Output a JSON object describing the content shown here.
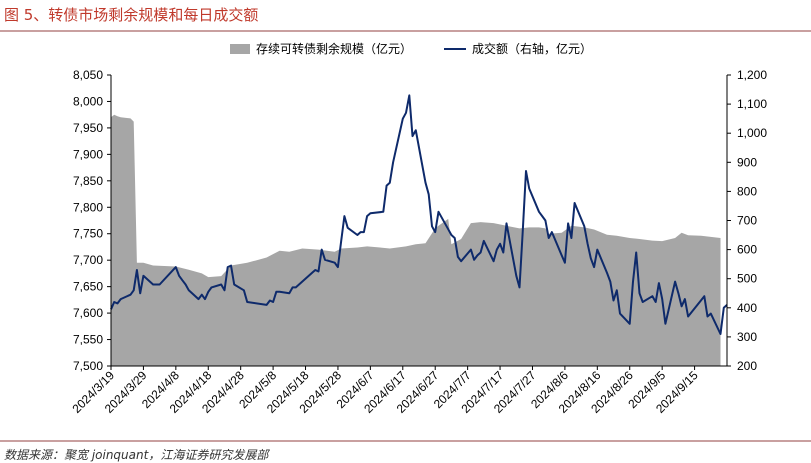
{
  "header": {
    "title": "图 5、转债市场剩余规模和每日成交额"
  },
  "footer": {
    "source": "数据来源：聚宽 joinquant，江海证券研究发展部"
  },
  "colors": {
    "area": "#a6a6a6",
    "line": "#0e2a6b",
    "title": "#c0392b",
    "rule": "#c9a0a0"
  },
  "chart_data": {
    "type": "area+line",
    "title": "",
    "legend_position": "top",
    "series": [
      {
        "name": "存续可转债剩余规模（亿元）",
        "type": "area",
        "axis": "left",
        "points": [
          [
            "2024-03-19",
            7970
          ],
          [
            "2024-03-20",
            7975
          ],
          [
            "2024-03-21",
            7972
          ],
          [
            "2024-03-22",
            7970
          ],
          [
            "2024-03-25",
            7968
          ],
          [
            "2024-03-26",
            7962
          ],
          [
            "2024-03-27",
            7695
          ],
          [
            "2024-03-29",
            7695
          ],
          [
            "2024-04-01",
            7690
          ],
          [
            "2024-04-08",
            7688
          ],
          [
            "2024-04-12",
            7682
          ],
          [
            "2024-04-16",
            7675
          ],
          [
            "2024-04-18",
            7668
          ],
          [
            "2024-04-22",
            7670
          ],
          [
            "2024-04-25",
            7690
          ],
          [
            "2024-04-30",
            7695
          ],
          [
            "2024-05-06",
            7705
          ],
          [
            "2024-05-10",
            7718
          ],
          [
            "2024-05-13",
            7716
          ],
          [
            "2024-05-17",
            7722
          ],
          [
            "2024-05-22",
            7720
          ],
          [
            "2024-05-27",
            7716
          ],
          [
            "2024-05-29",
            7722
          ],
          [
            "2024-06-03",
            7724
          ],
          [
            "2024-06-06",
            7726
          ],
          [
            "2024-06-10",
            7724
          ],
          [
            "2024-06-13",
            7722
          ],
          [
            "2024-06-18",
            7726
          ],
          [
            "2024-06-21",
            7730
          ],
          [
            "2024-06-24",
            7732
          ],
          [
            "2024-06-27",
            7760
          ],
          [
            "2024-06-28",
            7765
          ],
          [
            "2024-07-01",
            7778
          ],
          [
            "2024-07-02",
            7730
          ],
          [
            "2024-07-05",
            7740
          ],
          [
            "2024-07-08",
            7770
          ],
          [
            "2024-07-11",
            7772
          ],
          [
            "2024-07-15",
            7770
          ],
          [
            "2024-07-19",
            7765
          ],
          [
            "2024-07-23",
            7760
          ],
          [
            "2024-07-26",
            7762
          ],
          [
            "2024-07-29",
            7762
          ],
          [
            "2024-07-31",
            7760
          ],
          [
            "2024-08-01",
            7750
          ],
          [
            "2024-08-05",
            7752
          ],
          [
            "2024-08-08",
            7765
          ],
          [
            "2024-08-12",
            7762
          ],
          [
            "2024-08-15",
            7758
          ],
          [
            "2024-08-19",
            7748
          ],
          [
            "2024-08-22",
            7746
          ],
          [
            "2024-08-26",
            7742
          ],
          [
            "2024-08-29",
            7740
          ],
          [
            "2024-09-02",
            7737
          ],
          [
            "2024-09-05",
            7736
          ],
          [
            "2024-09-09",
            7742
          ],
          [
            "2024-09-11",
            7752
          ],
          [
            "2024-09-13",
            7747
          ],
          [
            "2024-09-17",
            7746
          ],
          [
            "2024-09-20",
            7744
          ],
          [
            "2024-09-23",
            7742
          ]
        ]
      },
      {
        "name": "成交额（右轴，亿元）",
        "type": "line",
        "axis": "right",
        "points": [
          [
            "2024-03-19",
            395
          ],
          [
            "2024-03-20",
            420
          ],
          [
            "2024-03-21",
            415
          ],
          [
            "2024-03-22",
            430
          ],
          [
            "2024-03-25",
            445
          ],
          [
            "2024-03-26",
            460
          ],
          [
            "2024-03-27",
            530
          ],
          [
            "2024-03-28",
            450
          ],
          [
            "2024-03-29",
            510
          ],
          [
            "2024-04-01",
            480
          ],
          [
            "2024-04-02",
            480
          ],
          [
            "2024-04-03",
            480
          ],
          [
            "2024-04-08",
            540
          ],
          [
            "2024-04-09",
            510
          ],
          [
            "2024-04-10",
            495
          ],
          [
            "2024-04-11",
            480
          ],
          [
            "2024-04-12",
            460
          ],
          [
            "2024-04-15",
            430
          ],
          [
            "2024-04-16",
            445
          ],
          [
            "2024-04-17",
            430
          ],
          [
            "2024-04-18",
            455
          ],
          [
            "2024-04-19",
            470
          ],
          [
            "2024-04-22",
            480
          ],
          [
            "2024-04-23",
            460
          ],
          [
            "2024-04-24",
            540
          ],
          [
            "2024-04-25",
            545
          ],
          [
            "2024-04-26",
            480
          ],
          [
            "2024-04-29",
            460
          ],
          [
            "2024-04-30",
            420
          ],
          [
            "2024-05-06",
            410
          ],
          [
            "2024-05-07",
            425
          ],
          [
            "2024-05-08",
            420
          ],
          [
            "2024-05-09",
            455
          ],
          [
            "2024-05-10",
            455
          ],
          [
            "2024-05-13",
            450
          ],
          [
            "2024-05-14",
            470
          ],
          [
            "2024-05-15",
            470
          ],
          [
            "2024-05-20",
            520
          ],
          [
            "2024-05-21",
            530
          ],
          [
            "2024-05-22",
            525
          ],
          [
            "2024-05-23",
            600
          ],
          [
            "2024-05-24",
            565
          ],
          [
            "2024-05-27",
            555
          ],
          [
            "2024-05-28",
            540
          ],
          [
            "2024-05-29",
            630
          ],
          [
            "2024-05-30",
            715
          ],
          [
            "2024-05-31",
            675
          ],
          [
            "2024-06-03",
            650
          ],
          [
            "2024-06-04",
            660
          ],
          [
            "2024-06-05",
            660
          ],
          [
            "2024-06-06",
            715
          ],
          [
            "2024-06-07",
            725
          ],
          [
            "2024-06-11",
            730
          ],
          [
            "2024-06-12",
            820
          ],
          [
            "2024-06-13",
            830
          ],
          [
            "2024-06-14",
            900
          ],
          [
            "2024-06-17",
            1050
          ],
          [
            "2024-06-18",
            1070
          ],
          [
            "2024-06-19",
            1130
          ],
          [
            "2024-06-20",
            990
          ],
          [
            "2024-06-21",
            1010
          ],
          [
            "2024-06-24",
            830
          ],
          [
            "2024-06-25",
            790
          ],
          [
            "2024-06-26",
            680
          ],
          [
            "2024-06-27",
            660
          ],
          [
            "2024-06-28",
            730
          ],
          [
            "2024-07-01",
            670
          ],
          [
            "2024-07-02",
            650
          ],
          [
            "2024-07-03",
            640
          ],
          [
            "2024-07-04",
            575
          ],
          [
            "2024-07-05",
            560
          ],
          [
            "2024-07-08",
            600
          ],
          [
            "2024-07-09",
            565
          ],
          [
            "2024-07-10",
            580
          ],
          [
            "2024-07-11",
            590
          ],
          [
            "2024-07-12",
            630
          ],
          [
            "2024-07-15",
            560
          ],
          [
            "2024-07-16",
            600
          ],
          [
            "2024-07-17",
            620
          ],
          [
            "2024-07-18",
            590
          ],
          [
            "2024-07-19",
            690
          ],
          [
            "2024-07-22",
            510
          ],
          [
            "2024-07-23",
            470
          ],
          [
            "2024-07-24",
            660
          ],
          [
            "2024-07-25",
            870
          ],
          [
            "2024-07-26",
            810
          ],
          [
            "2024-07-29",
            730
          ],
          [
            "2024-07-30",
            715
          ],
          [
            "2024-07-31",
            700
          ],
          [
            "2024-08-01",
            640
          ],
          [
            "2024-08-02",
            660
          ],
          [
            "2024-08-05",
            580
          ],
          [
            "2024-08-06",
            555
          ],
          [
            "2024-08-07",
            690
          ],
          [
            "2024-08-08",
            640
          ],
          [
            "2024-08-09",
            760
          ],
          [
            "2024-08-12",
            680
          ],
          [
            "2024-08-13",
            620
          ],
          [
            "2024-08-14",
            570
          ],
          [
            "2024-08-15",
            540
          ],
          [
            "2024-08-16",
            600
          ],
          [
            "2024-08-19",
            520
          ],
          [
            "2024-08-20",
            490
          ],
          [
            "2024-08-21",
            425
          ],
          [
            "2024-08-22",
            460
          ],
          [
            "2024-08-23",
            380
          ],
          [
            "2024-08-26",
            345
          ],
          [
            "2024-08-27",
            490
          ],
          [
            "2024-08-28",
            590
          ],
          [
            "2024-08-29",
            450
          ],
          [
            "2024-08-30",
            420
          ],
          [
            "2024-09-02",
            440
          ],
          [
            "2024-09-03",
            420
          ],
          [
            "2024-09-04",
            485
          ],
          [
            "2024-09-05",
            430
          ],
          [
            "2024-09-06",
            345
          ],
          [
            "2024-09-09",
            490
          ],
          [
            "2024-09-10",
            450
          ],
          [
            "2024-09-11",
            405
          ],
          [
            "2024-09-12",
            430
          ],
          [
            "2024-09-13",
            370
          ],
          [
            "2024-09-18",
            440
          ],
          [
            "2024-09-19",
            370
          ],
          [
            "2024-09-20",
            380
          ],
          [
            "2024-09-23",
            310
          ],
          [
            "2024-09-24",
            400
          ],
          [
            "2024-09-25",
            410
          ]
        ]
      }
    ],
    "x_axis": {
      "range": [
        "2024-03-19",
        "2024-09-25"
      ],
      "tick_labels": [
        "2024/3/19",
        "2024/3/29",
        "2024/4/8",
        "2024/4/18",
        "2024/4/28",
        "2024/5/8",
        "2024/5/18",
        "2024/5/28",
        "2024/6/7",
        "2024/6/17",
        "2024/6/27",
        "2024/7/7",
        "2024/7/17",
        "2024/7/27",
        "2024/8/6",
        "2024/8/16",
        "2024/8/26",
        "2024/9/5",
        "2024/9/15"
      ],
      "tick_dates": [
        "2024-03-19",
        "2024-03-29",
        "2024-04-08",
        "2024-04-18",
        "2024-04-28",
        "2024-05-08",
        "2024-05-18",
        "2024-05-28",
        "2024-06-07",
        "2024-06-17",
        "2024-06-27",
        "2024-07-07",
        "2024-07-17",
        "2024-07-27",
        "2024-08-06",
        "2024-08-16",
        "2024-08-26",
        "2024-09-05",
        "2024-09-15"
      ]
    },
    "y_left": {
      "min": 7500,
      "max": 8050,
      "tick_labels": [
        "8,050",
        "8,000",
        "7,950",
        "7,900",
        "7,850",
        "7,800",
        "7,750",
        "7,700",
        "7,650",
        "7,600",
        "7,550",
        "7,500"
      ],
      "tick_values": [
        8050,
        8000,
        7950,
        7900,
        7850,
        7800,
        7750,
        7700,
        7650,
        7600,
        7550,
        7500
      ]
    },
    "y_right": {
      "min": 200,
      "max": 1200,
      "tick_labels": [
        "1,200",
        "1,100",
        "1,000",
        "900",
        "800",
        "700",
        "600",
        "500",
        "400",
        "300",
        "200"
      ],
      "tick_values": [
        1200,
        1100,
        1000,
        900,
        800,
        700,
        600,
        500,
        400,
        300,
        200
      ]
    },
    "grid": false
  }
}
